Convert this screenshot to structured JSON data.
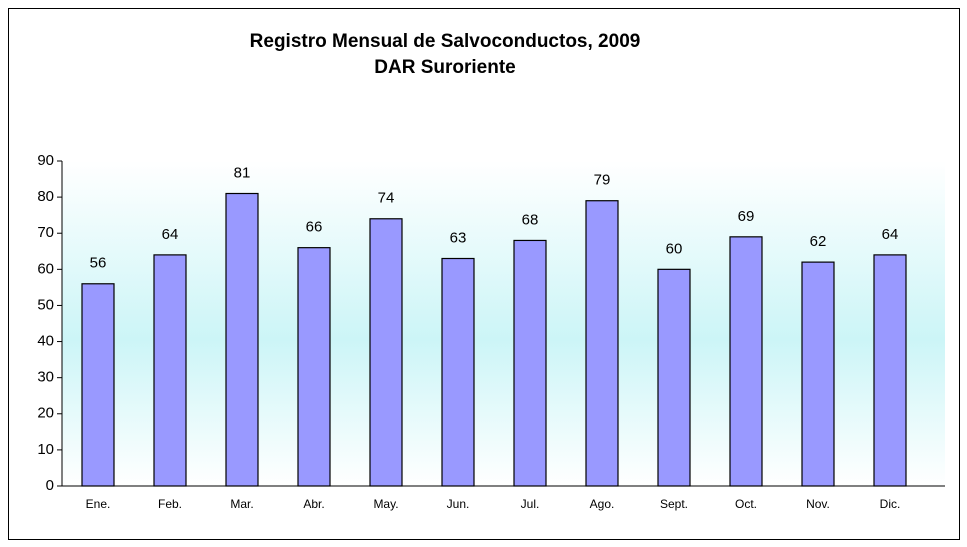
{
  "chart_data": {
    "type": "bar",
    "title": "Registro Mensual de Salvoconductos, 2009",
    "subtitle": "DAR Suroriente",
    "categories": [
      "Ene.",
      "Feb.",
      "Mar.",
      "Abr.",
      "May.",
      "Jun.",
      "Jul.",
      "Ago.",
      "Sept.",
      "Oct.",
      "Nov.",
      "Dic."
    ],
    "values": [
      56,
      64,
      81,
      66,
      74,
      63,
      68,
      79,
      60,
      69,
      62,
      64
    ],
    "color": "#9999ff",
    "ylim": [
      0,
      90
    ],
    "yticks": [
      0,
      10,
      20,
      30,
      40,
      50,
      60,
      70,
      80,
      90
    ],
    "grid": false
  }
}
